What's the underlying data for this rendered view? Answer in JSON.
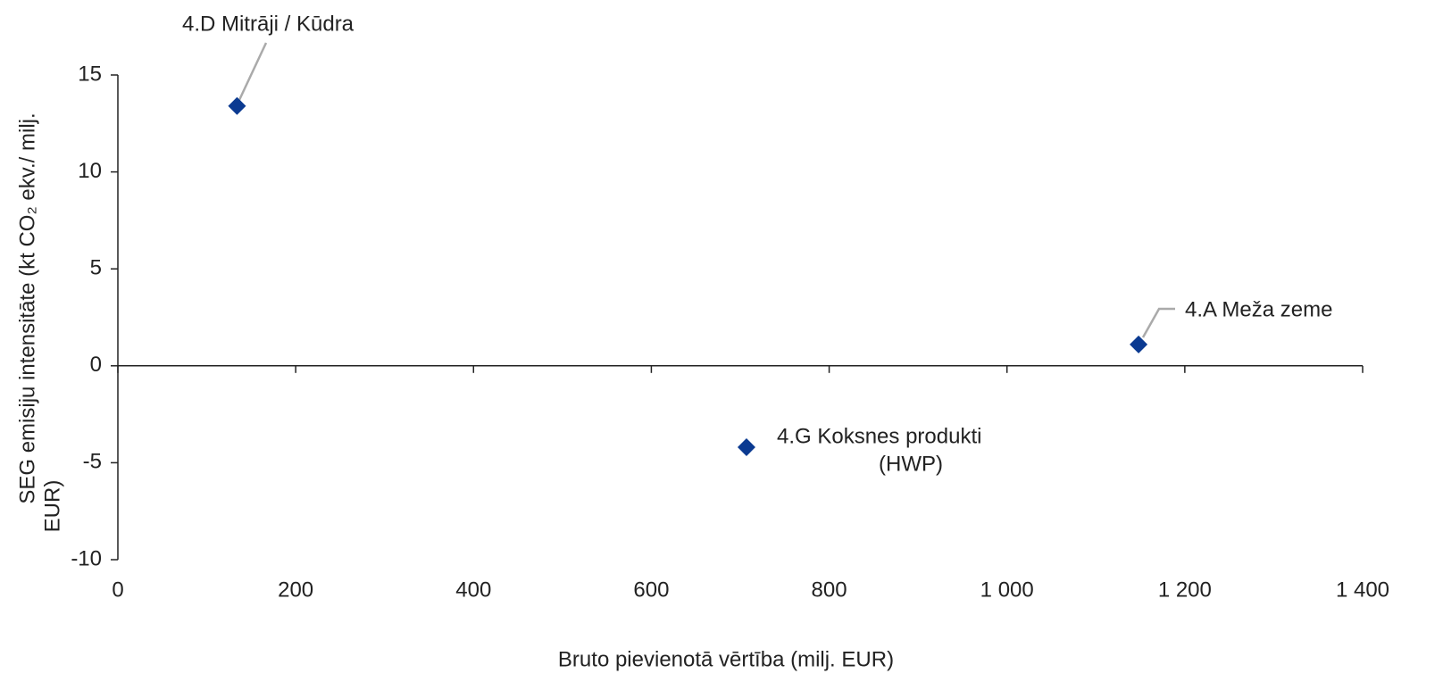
{
  "chart_data": {
    "type": "scatter",
    "y_label": [
      "SEG emisiju intensitāte (kt CO₂ ekv./ milj.",
      "EUR)"
    ],
    "x_label": "Bruto pievienotā vērtība (milj. EUR)",
    "x": [
      134,
      707,
      1148
    ],
    "values": [
      13.4,
      -4.2,
      1.1
    ],
    "point_labels": [
      [
        "4.D Mitrāji / Kūdra"
      ],
      [
        "4.G Koksnes produkti",
        "(HWP)"
      ],
      [
        "4.A Meža zeme"
      ]
    ],
    "color": "#0b3a91",
    "xlim": [
      0,
      1400
    ],
    "xticks": [
      0,
      200,
      400,
      600,
      800,
      {
        "value": 1000,
        "label": "1 000"
      },
      {
        "value": 1200,
        "label": "1 200"
      },
      {
        "value": 1400,
        "label": "1 400"
      }
    ],
    "ylim": [
      -10,
      15
    ],
    "yticks": [
      -10,
      -5,
      0,
      5,
      10,
      15
    ],
    "grid": false
  }
}
